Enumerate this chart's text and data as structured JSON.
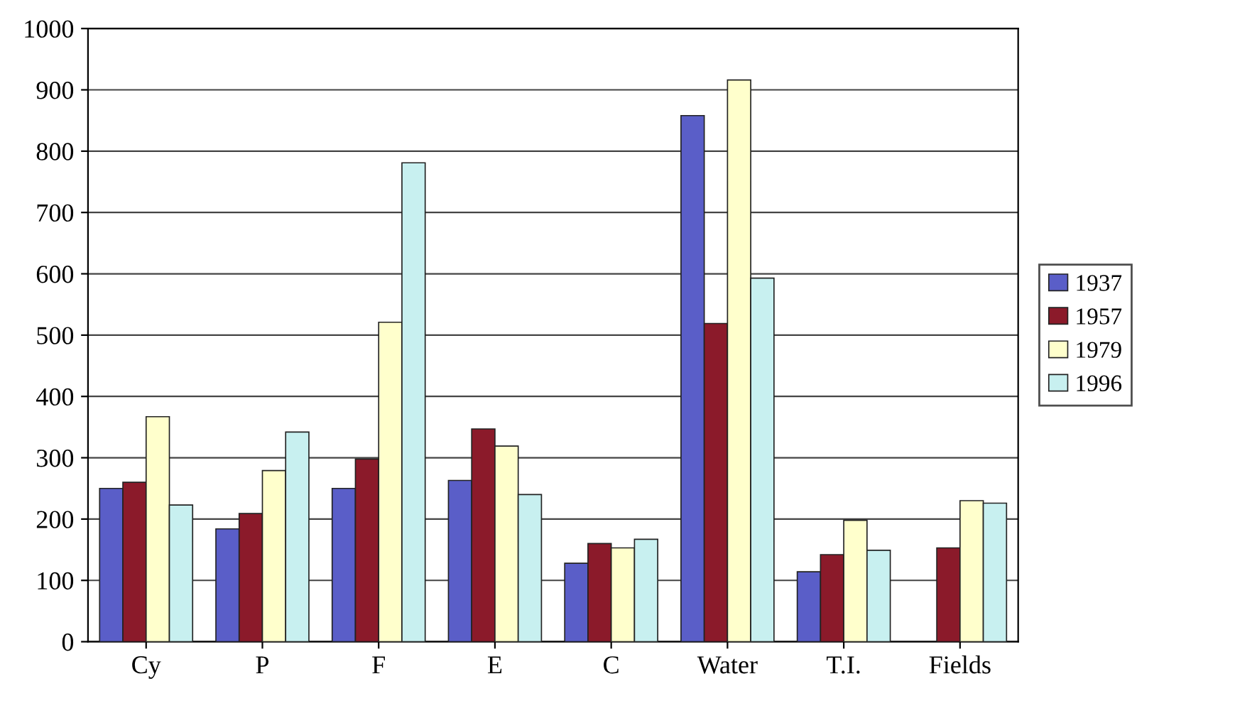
{
  "chart_data": {
    "type": "bar",
    "categories": [
      "Cy",
      "P",
      "F",
      "E",
      "C",
      "Water",
      "T.I.",
      "Fields"
    ],
    "series": [
      {
        "name": "1937",
        "color": "#5a5ec8",
        "values": [
          250,
          184,
          250,
          263,
          128,
          858,
          114,
          null
        ]
      },
      {
        "name": "1957",
        "color": "#8b1a2a",
        "values": [
          260,
          209,
          298,
          347,
          160,
          519,
          142,
          153
        ]
      },
      {
        "name": "1979",
        "color": "#ffffcc",
        "values": [
          367,
          279,
          521,
          319,
          153,
          916,
          198,
          230
        ]
      },
      {
        "name": "1996",
        "color": "#c8f0f0",
        "values": [
          223,
          342,
          781,
          240,
          167,
          593,
          149,
          226
        ]
      }
    ],
    "ylim": [
      0,
      1000
    ],
    "yticks": [
      0,
      100,
      200,
      300,
      400,
      500,
      600,
      700,
      800,
      900,
      1000
    ],
    "grid": "y",
    "legend": "right"
  }
}
